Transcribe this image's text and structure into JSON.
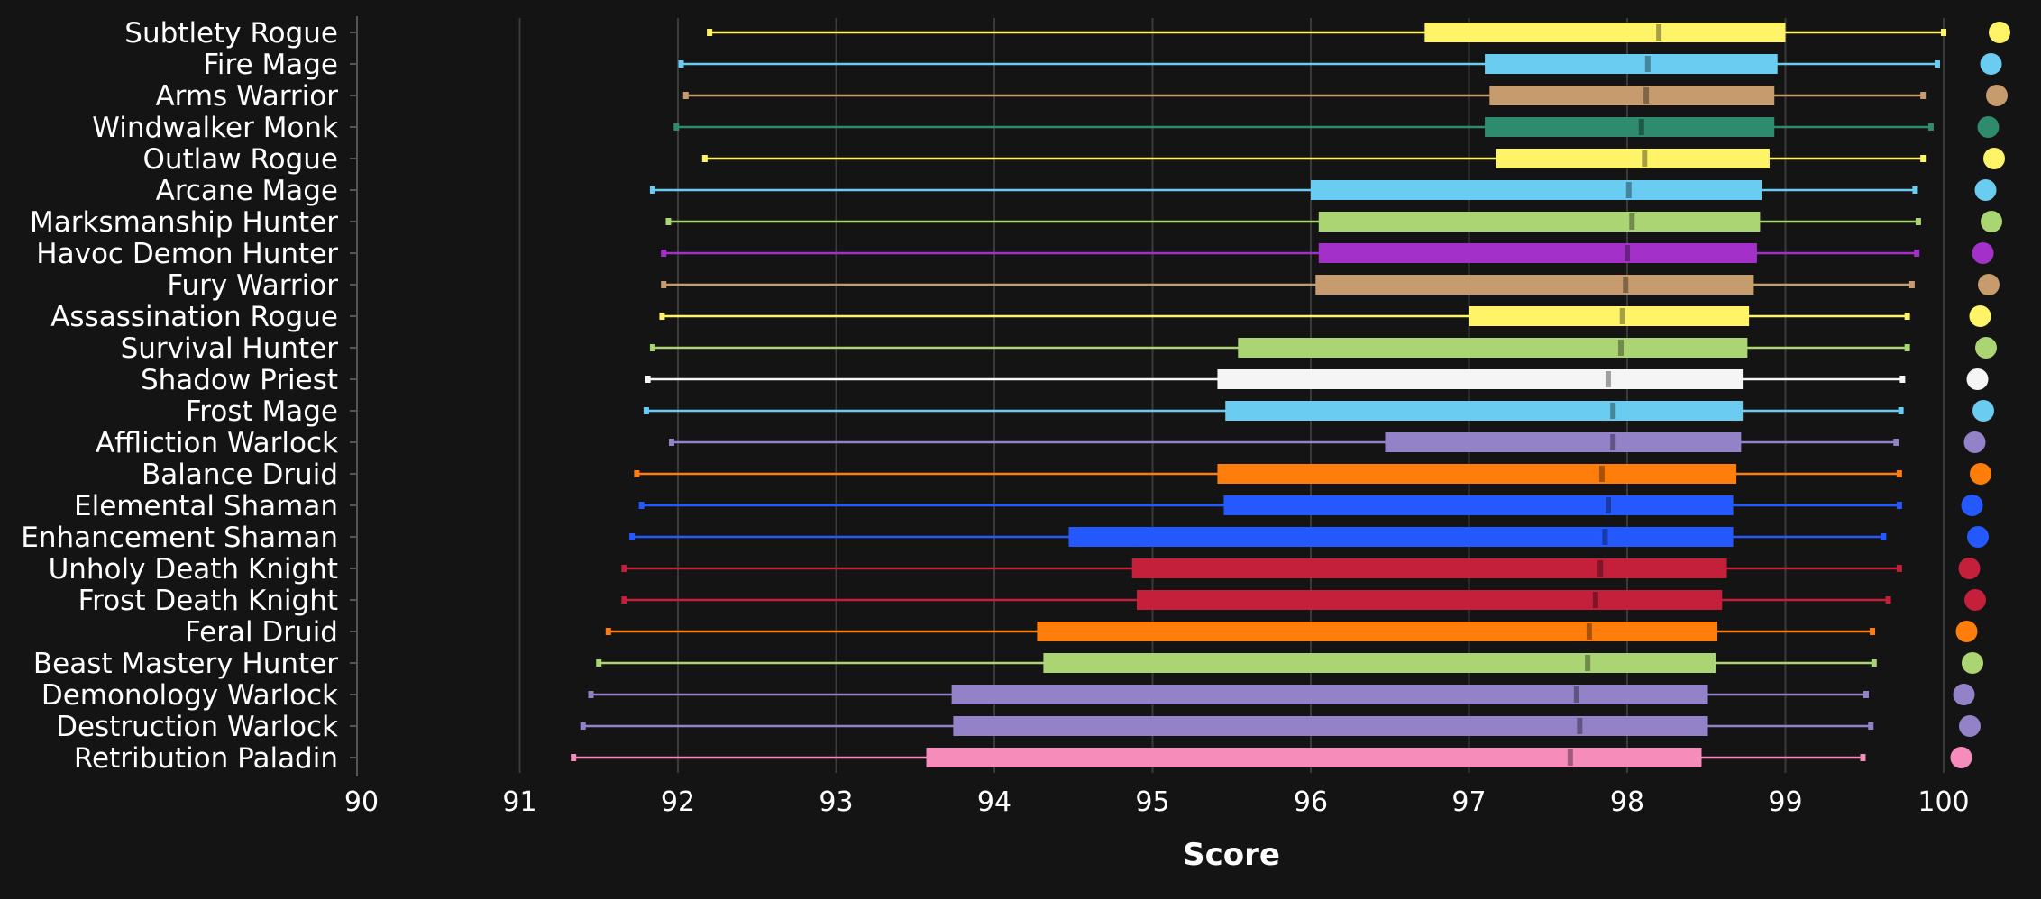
{
  "chart_data": {
    "type": "box",
    "xlabel": "Score",
    "xlim": [
      90,
      100
    ],
    "x_ticks": [
      "90",
      "91",
      "92",
      "93",
      "94",
      "95",
      "96",
      "97",
      "98",
      "99",
      "100"
    ],
    "grid": "vertical",
    "background": "#141414",
    "categories": [
      "Subtlety Rogue",
      "Fire Mage",
      "Arms Warrior",
      "Windwalker Monk",
      "Outlaw Rogue",
      "Arcane Mage",
      "Marksmanship Hunter",
      "Havoc Demon Hunter",
      "Fury Warrior",
      "Assassination Rogue",
      "Survival Hunter",
      "Shadow Priest",
      "Frost Mage",
      "Affliction Warlock",
      "Balance Druid",
      "Elemental Shaman",
      "Enhancement Shaman",
      "Unholy Death Knight",
      "Frost Death Knight",
      "Feral Druid",
      "Beast Mastery Hunter",
      "Demonology Warlock",
      "Destruction Warlock",
      "Retribution Paladin"
    ],
    "boxes": [
      {
        "min": 92.2,
        "q1": 96.72,
        "median": 98.2,
        "q3": 99.0,
        "max": 100.0,
        "color": "#fff468"
      },
      {
        "min": 92.02,
        "q1": 97.1,
        "median": 98.13,
        "q3": 98.95,
        "max": 99.96,
        "color": "#69ccf0"
      },
      {
        "min": 92.05,
        "q1": 97.13,
        "median": 98.12,
        "q3": 98.93,
        "max": 99.87,
        "color": "#c69b6d"
      },
      {
        "min": 91.99,
        "q1": 97.1,
        "median": 98.09,
        "q3": 98.93,
        "max": 99.92,
        "color": "#2e8b6e"
      },
      {
        "min": 92.17,
        "q1": 97.17,
        "median": 98.11,
        "q3": 98.9,
        "max": 99.87,
        "color": "#fff468"
      },
      {
        "min": 91.84,
        "q1": 96.0,
        "median": 98.01,
        "q3": 98.85,
        "max": 99.82,
        "color": "#69ccf0"
      },
      {
        "min": 91.94,
        "q1": 96.05,
        "median": 98.03,
        "q3": 98.84,
        "max": 99.84,
        "color": "#abd473"
      },
      {
        "min": 91.91,
        "q1": 96.05,
        "median": 98.0,
        "q3": 98.82,
        "max": 99.83,
        "color": "#a330c9"
      },
      {
        "min": 91.91,
        "q1": 96.03,
        "median": 97.99,
        "q3": 98.8,
        "max": 99.8,
        "color": "#c69b6d"
      },
      {
        "min": 91.9,
        "q1": 97.0,
        "median": 97.97,
        "q3": 98.77,
        "max": 99.77,
        "color": "#fff468"
      },
      {
        "min": 91.84,
        "q1": 95.54,
        "median": 97.96,
        "q3": 98.76,
        "max": 99.77,
        "color": "#abd473"
      },
      {
        "min": 91.81,
        "q1": 95.41,
        "median": 97.88,
        "q3": 98.73,
        "max": 99.74,
        "color": "#f5f5f5"
      },
      {
        "min": 91.8,
        "q1": 95.46,
        "median": 97.91,
        "q3": 98.73,
        "max": 99.73,
        "color": "#69ccf0"
      },
      {
        "min": 91.96,
        "q1": 96.47,
        "median": 97.91,
        "q3": 98.72,
        "max": 99.7,
        "color": "#9482c9"
      },
      {
        "min": 91.74,
        "q1": 95.41,
        "median": 97.84,
        "q3": 98.69,
        "max": 99.72,
        "color": "#ff7d0a"
      },
      {
        "min": 91.77,
        "q1": 95.45,
        "median": 97.88,
        "q3": 98.67,
        "max": 99.72,
        "color": "#2459ff"
      },
      {
        "min": 91.71,
        "q1": 94.47,
        "median": 97.86,
        "q3": 98.67,
        "max": 99.62,
        "color": "#2459ff"
      },
      {
        "min": 91.66,
        "q1": 94.87,
        "median": 97.83,
        "q3": 98.63,
        "max": 99.72,
        "color": "#c41f3b"
      },
      {
        "min": 91.66,
        "q1": 94.9,
        "median": 97.8,
        "q3": 98.6,
        "max": 99.65,
        "color": "#c41f3b"
      },
      {
        "min": 91.56,
        "q1": 94.27,
        "median": 97.76,
        "q3": 98.57,
        "max": 99.55,
        "color": "#ff7d0a"
      },
      {
        "min": 91.5,
        "q1": 94.31,
        "median": 97.75,
        "q3": 98.56,
        "max": 99.56,
        "color": "#abd473"
      },
      {
        "min": 91.45,
        "q1": 93.73,
        "median": 97.68,
        "q3": 98.51,
        "max": 99.51,
        "color": "#9482c9"
      },
      {
        "min": 91.4,
        "q1": 93.74,
        "median": 97.7,
        "q3": 98.51,
        "max": 99.54,
        "color": "#9482c9"
      },
      {
        "min": 91.34,
        "q1": 93.57,
        "median": 97.64,
        "q3": 98.47,
        "max": 99.49,
        "color": "#f58cba"
      }
    ]
  }
}
